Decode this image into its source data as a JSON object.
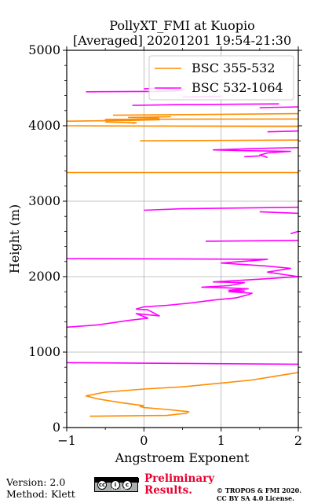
{
  "chart_data": {
    "type": "line",
    "title": [
      "PollyXT_FMI at Kuopio",
      "[Averaged] 20201201 19:54-21:30"
    ],
    "xlabel": "Angstroem Exponent",
    "ylabel": "Height (m)",
    "xlim": [
      -1,
      2
    ],
    "ylim": [
      0,
      5000
    ],
    "xticks": [
      -1,
      0,
      1,
      2
    ],
    "yticks": [
      0,
      1000,
      2000,
      3000,
      4000,
      5000
    ],
    "xtick_labels": [
      "−1",
      "0",
      "1",
      "2"
    ],
    "ytick_labels": [
      "0",
      "1000",
      "2000",
      "3000",
      "4000",
      "5000"
    ],
    "grid": true,
    "legend_position": "top-right",
    "series": [
      {
        "name": "BSC 355-532",
        "color": "#ff8c00",
        "points": [
          [
            -0.7,
            150
          ],
          [
            0.3,
            160
          ],
          [
            0.55,
            190
          ],
          [
            0.58,
            210
          ],
          [
            0.3,
            240
          ],
          [
            0.0,
            265
          ],
          [
            -0.05,
            280
          ],
          [
            0.0,
            290
          ],
          [
            -0.3,
            330
          ],
          [
            -0.6,
            380
          ],
          [
            -0.75,
            420
          ],
          [
            -0.5,
            470
          ],
          [
            0.0,
            510
          ],
          [
            0.5,
            540
          ],
          [
            1.0,
            590
          ],
          [
            1.4,
            630
          ],
          [
            1.7,
            680
          ],
          [
            2.0,
            730
          ],
          [
            null,
            null
          ],
          [
            -1.0,
            3380
          ],
          [
            2.0,
            3380
          ],
          [
            null,
            null
          ],
          [
            -0.05,
            3800
          ],
          [
            2.0,
            3810
          ],
          [
            null,
            null
          ],
          [
            -1.0,
            4000
          ],
          [
            2.0,
            3990
          ],
          [
            null,
            null
          ],
          [
            -1.0,
            4060
          ],
          [
            -0.2,
            4070
          ],
          [
            0.2,
            4080
          ],
          [
            -0.5,
            4085
          ],
          [
            2.0,
            4090
          ],
          [
            null,
            null
          ],
          [
            -0.15,
            4030
          ],
          [
            -0.1,
            4040
          ],
          [
            -0.5,
            4050
          ],
          [
            null,
            null
          ],
          [
            -0.4,
            4140
          ],
          [
            0.2,
            4145
          ],
          [
            2.0,
            4160
          ],
          [
            null,
            null
          ],
          [
            0.2,
            4100
          ],
          [
            -0.2,
            4110
          ],
          [
            0.35,
            4120
          ]
        ]
      },
      {
        "name": "BSC 532-1064",
        "color": "#ff00ff",
        "points": [
          [
            -1.0,
            860
          ],
          [
            2.0,
            840
          ],
          [
            null,
            null
          ],
          [
            -1.0,
            1330
          ],
          [
            -0.6,
            1360
          ],
          [
            -0.2,
            1420
          ],
          [
            0.05,
            1450
          ],
          [
            -0.1,
            1510
          ],
          [
            0.2,
            1480
          ],
          [
            0.05,
            1560
          ],
          [
            -0.1,
            1570
          ],
          [
            0.0,
            1600
          ],
          [
            0.3,
            1620
          ],
          [
            0.6,
            1650
          ],
          [
            0.9,
            1690
          ],
          [
            1.2,
            1720
          ],
          [
            1.35,
            1760
          ],
          [
            1.4,
            1780
          ],
          [
            1.1,
            1800
          ],
          [
            1.3,
            1810
          ],
          [
            1.1,
            1820
          ],
          [
            1.35,
            1840
          ],
          [
            1.0,
            1855
          ],
          [
            0.75,
            1860
          ],
          [
            1.1,
            1880
          ],
          [
            1.3,
            1920
          ],
          [
            0.9,
            1930
          ],
          [
            1.4,
            1960
          ],
          [
            1.7,
            1980
          ],
          [
            2.0,
            2000
          ],
          [
            1.6,
            2060
          ],
          [
            1.9,
            2110
          ],
          [
            1.6,
            2140
          ],
          [
            1.0,
            2180
          ],
          [
            1.5,
            2220
          ],
          [
            1.6,
            2230
          ],
          [
            -1.0,
            2240
          ],
          [
            null,
            null
          ],
          [
            0.8,
            2470
          ],
          [
            2.0,
            2480
          ],
          [
            null,
            null
          ],
          [
            1.9,
            2570
          ],
          [
            2.0,
            2600
          ],
          [
            null,
            null
          ],
          [
            0.0,
            2880
          ],
          [
            0.5,
            2900
          ],
          [
            2.0,
            2920
          ],
          [
            null,
            null
          ],
          [
            2.0,
            2840
          ],
          [
            1.5,
            2860
          ],
          [
            null,
            null
          ],
          [
            1.6,
            3580
          ],
          [
            1.5,
            3610
          ],
          [
            1.6,
            3640
          ],
          [
            1.9,
            3660
          ],
          [
            1.3,
            3670
          ],
          [
            0.9,
            3680
          ],
          [
            1.5,
            3700
          ],
          [
            2.0,
            3710
          ],
          [
            null,
            null
          ],
          [
            1.3,
            3590
          ],
          [
            1.5,
            3600
          ],
          [
            null,
            null
          ],
          [
            1.6,
            3920
          ],
          [
            2.0,
            3930
          ],
          [
            null,
            null
          ],
          [
            1.5,
            4240
          ],
          [
            2.0,
            4250
          ],
          [
            null,
            null
          ],
          [
            -0.15,
            4270
          ],
          [
            0.5,
            4280
          ],
          [
            1.75,
            4290
          ],
          [
            null,
            null
          ],
          [
            0.5,
            4380
          ],
          [
            1.0,
            4390
          ],
          [
            null,
            null
          ],
          [
            -0.75,
            4450
          ],
          [
            0.2,
            4455
          ],
          [
            0.4,
            4460
          ],
          [
            0.5,
            4470
          ],
          [
            0.2,
            4500
          ],
          [
            0.0,
            4490
          ]
        ]
      }
    ]
  },
  "footer": {
    "version": "Version: 2.0",
    "method": "Method: Klett",
    "cc_label": "BY SA",
    "preliminary_line1": "Preliminary",
    "preliminary_line2": "Results.",
    "copyright_line1": "© TROPOS & FMI 2020.",
    "copyright_line2": "CC BY SA 4.0 License."
  }
}
